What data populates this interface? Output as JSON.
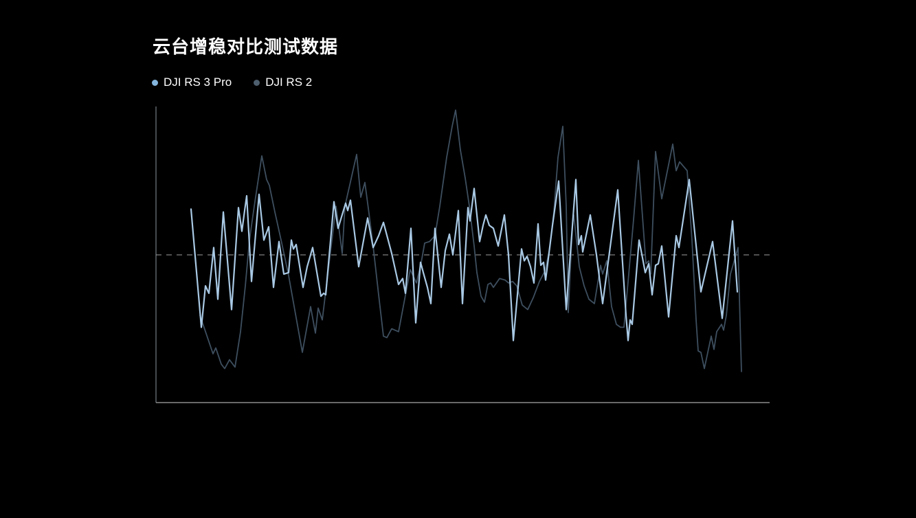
{
  "title": "云台增稳对比测试数据",
  "legend": {
    "items": [
      {
        "label": "DJI RS 3 Pro",
        "color": "#84b5dd"
      },
      {
        "label": "DJI RS 2",
        "color": "#4d5f6e"
      }
    ]
  },
  "colors": {
    "background": "#000000",
    "title_text": "#ffffff",
    "legend_text": "#ffffff",
    "axis_left": "#5f6468",
    "axis_bottom": "#8c8c8c",
    "baseline_dash": "#a0a0a0",
    "series_rs3pro": "#a9c9e4",
    "series_rs2": "#3e4f5f"
  },
  "chart_data": {
    "type": "line",
    "title": "云台增稳对比测试数据",
    "xlabel": "",
    "ylabel": "",
    "legend_position": "top-left",
    "grid": false,
    "x_axis": {
      "tick_labels": [],
      "labels_shown": false
    },
    "y_axis": {
      "tick_labels": [],
      "labels_shown": false,
      "zero_baseline_dashed": true
    },
    "ylim": [
      -1.05,
      1.05
    ],
    "note": "amplitude around dashed zero baseline, arbitrary units; x is horizontal pixel position of sample",
    "series": [
      {
        "name": "DJI RS 3 Pro",
        "color": "#a9c9e4",
        "points": [
          [
            278,
            0.31
          ],
          [
            293,
            -0.49
          ],
          [
            299,
            -0.21
          ],
          [
            304,
            -0.26
          ],
          [
            311,
            0.05
          ],
          [
            317,
            -0.3
          ],
          [
            325,
            0.29
          ],
          [
            337,
            -0.37
          ],
          [
            347,
            0.32
          ],
          [
            352,
            0.16
          ],
          [
            356,
            0.3
          ],
          [
            359,
            0.4
          ],
          [
            366,
            -0.18
          ],
          [
            377,
            0.41
          ],
          [
            384,
            0.1
          ],
          [
            391,
            0.19
          ],
          [
            398,
            -0.22
          ],
          [
            406,
            0.09
          ],
          [
            413,
            -0.13
          ],
          [
            420,
            -0.12
          ],
          [
            424,
            0.1
          ],
          [
            427,
            0.04
          ],
          [
            431,
            0.07
          ],
          [
            441,
            -0.22
          ],
          [
            447,
            -0.08
          ],
          [
            455,
            0.05
          ],
          [
            467,
            -0.28
          ],
          [
            471,
            -0.26
          ],
          [
            474,
            -0.27
          ],
          [
            486,
            0.36
          ],
          [
            492,
            0.18
          ],
          [
            503,
            0.35
          ],
          [
            506,
            0.3
          ],
          [
            510,
            0.37
          ],
          [
            522,
            -0.08
          ],
          [
            535,
            0.25
          ],
          [
            543,
            0.05
          ],
          [
            551,
            0.13
          ],
          [
            558,
            0.22
          ],
          [
            570,
            0.01
          ],
          [
            580,
            -0.2
          ],
          [
            586,
            -0.16
          ],
          [
            590,
            -0.26
          ],
          [
            598,
            0.18
          ],
          [
            605,
            -0.46
          ],
          [
            612,
            -0.05
          ],
          [
            616,
            -0.12
          ],
          [
            622,
            -0.22
          ],
          [
            627,
            -0.33
          ],
          [
            633,
            0.18
          ],
          [
            642,
            -0.22
          ],
          [
            648,
            0.03
          ],
          [
            654,
            0.14
          ],
          [
            659,
            0.0
          ],
          [
            667,
            0.3
          ],
          [
            673,
            -0.33
          ],
          [
            681,
            0.32
          ],
          [
            684,
            0.23
          ],
          [
            690,
            0.45
          ],
          [
            698,
            0.09
          ],
          [
            703,
            0.2
          ],
          [
            707,
            0.27
          ],
          [
            712,
            0.2
          ],
          [
            718,
            0.18
          ],
          [
            725,
            0.06
          ],
          [
            734,
            0.27
          ],
          [
            740,
            0.0
          ],
          [
            747,
            -0.58
          ],
          [
            759,
            0.04
          ],
          [
            763,
            -0.04
          ],
          [
            767,
            -0.01
          ],
          [
            772,
            -0.08
          ],
          [
            777,
            -0.19
          ],
          [
            783,
            0.21
          ],
          [
            787,
            -0.07
          ],
          [
            791,
            -0.05
          ],
          [
            794,
            -0.17
          ],
          [
            804,
            0.2
          ],
          [
            813,
            0.5
          ],
          [
            824,
            -0.37
          ],
          [
            838,
            0.51
          ],
          [
            842,
            0.07
          ],
          [
            846,
            0.13
          ],
          [
            848,
            0.02
          ],
          [
            859,
            0.27
          ],
          [
            868,
            0.0
          ],
          [
            877,
            -0.33
          ],
          [
            899,
            0.44
          ],
          [
            911,
            -0.41
          ],
          [
            914,
            -0.58
          ],
          [
            917,
            -0.44
          ],
          [
            920,
            -0.47
          ],
          [
            930,
            0.1
          ],
          [
            935,
            -0.02
          ],
          [
            939,
            -0.12
          ],
          [
            944,
            -0.06
          ],
          [
            949,
            -0.27
          ],
          [
            954,
            -0.07
          ],
          [
            958,
            -0.06
          ],
          [
            963,
            0.06
          ],
          [
            973,
            -0.42
          ],
          [
            984,
            0.13
          ],
          [
            988,
            0.05
          ],
          [
            1003,
            0.51
          ],
          [
            1020,
            -0.25
          ],
          [
            1037,
            0.09
          ],
          [
            1051,
            -0.43
          ],
          [
            1066,
            0.23
          ],
          [
            1073,
            -0.25
          ]
        ]
      },
      {
        "name": "DJI RS 2",
        "color": "#3e4f5f",
        "points": [
          [
            291,
            -0.41
          ],
          [
            310,
            -0.67
          ],
          [
            314,
            -0.63
          ],
          [
            322,
            -0.74
          ],
          [
            327,
            -0.77
          ],
          [
            334,
            -0.71
          ],
          [
            342,
            -0.76
          ],
          [
            350,
            -0.52
          ],
          [
            357,
            -0.21
          ],
          [
            363,
            0.1
          ],
          [
            370,
            0.33
          ],
          [
            381,
            0.67
          ],
          [
            388,
            0.51
          ],
          [
            392,
            0.47
          ],
          [
            400,
            0.29
          ],
          [
            410,
            0.08
          ],
          [
            420,
            -0.14
          ],
          [
            440,
            -0.66
          ],
          [
            452,
            -0.35
          ],
          [
            459,
            -0.53
          ],
          [
            463,
            -0.36
          ],
          [
            469,
            -0.44
          ],
          [
            489,
            0.33
          ],
          [
            498,
            0.01
          ],
          [
            502,
            0.33
          ],
          [
            519,
            0.68
          ],
          [
            525,
            0.39
          ],
          [
            531,
            0.49
          ],
          [
            537,
            0.28
          ],
          [
            543,
            0.06
          ],
          [
            551,
            -0.27
          ],
          [
            558,
            -0.55
          ],
          [
            563,
            -0.56
          ],
          [
            570,
            -0.5
          ],
          [
            580,
            -0.52
          ],
          [
            597,
            -0.1
          ],
          [
            606,
            -0.19
          ],
          [
            613,
            -0.05
          ],
          [
            618,
            0.08
          ],
          [
            625,
            0.09
          ],
          [
            633,
            0.13
          ],
          [
            640,
            0.33
          ],
          [
            650,
            0.66
          ],
          [
            658,
            0.87
          ],
          [
            663,
            0.98
          ],
          [
            670,
            0.71
          ],
          [
            677,
            0.52
          ],
          [
            683,
            0.33
          ],
          [
            690,
            0.06
          ],
          [
            694,
            -0.12
          ],
          [
            700,
            -0.28
          ],
          [
            705,
            -0.32
          ],
          [
            710,
            -0.2
          ],
          [
            714,
            -0.19
          ],
          [
            718,
            -0.22
          ],
          [
            727,
            -0.16
          ],
          [
            735,
            -0.17
          ],
          [
            740,
            -0.19
          ],
          [
            746,
            -0.18
          ],
          [
            752,
            -0.21
          ],
          [
            760,
            -0.34
          ],
          [
            768,
            -0.37
          ],
          [
            776,
            -0.29
          ],
          [
            785,
            -0.18
          ],
          [
            793,
            -0.11
          ],
          [
            800,
            0.04
          ],
          [
            806,
            0.29
          ],
          [
            812,
            0.66
          ],
          [
            819,
            0.87
          ],
          [
            824,
            0.33
          ],
          [
            827,
            -0.39
          ],
          [
            833,
            0.2
          ],
          [
            835,
            0.27
          ],
          [
            843,
            -0.08
          ],
          [
            850,
            -0.21
          ],
          [
            857,
            -0.3
          ],
          [
            865,
            -0.33
          ],
          [
            874,
            -0.07
          ],
          [
            877,
            -0.13
          ],
          [
            883,
            -0.04
          ],
          [
            890,
            -0.35
          ],
          [
            897,
            -0.47
          ],
          [
            903,
            -0.49
          ],
          [
            908,
            -0.49
          ],
          [
            915,
            -0.13
          ],
          [
            922,
            0.24
          ],
          [
            929,
            0.64
          ],
          [
            940,
            -0.06
          ],
          [
            944,
            -0.04
          ],
          [
            947,
            -0.13
          ],
          [
            954,
            0.7
          ],
          [
            963,
            0.38
          ],
          [
            979,
            0.75
          ],
          [
            984,
            0.57
          ],
          [
            989,
            0.63
          ],
          [
            1000,
            0.57
          ],
          [
            1007,
            0.1
          ],
          [
            1013,
            -0.44
          ],
          [
            1016,
            -0.65
          ],
          [
            1020,
            -0.66
          ],
          [
            1025,
            -0.77
          ],
          [
            1035,
            -0.55
          ],
          [
            1039,
            -0.64
          ],
          [
            1043,
            -0.52
          ],
          [
            1050,
            -0.47
          ],
          [
            1053,
            -0.51
          ],
          [
            1057,
            -0.41
          ],
          [
            1063,
            -0.13
          ],
          [
            1074,
            0.05
          ],
          [
            1079,
            -0.79
          ]
        ]
      }
    ]
  }
}
